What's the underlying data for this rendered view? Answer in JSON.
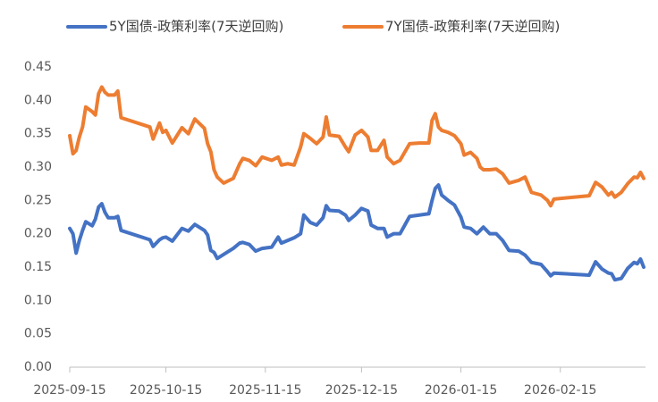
{
  "chart_data": {
    "type": "line",
    "x": [
      "2025-09-15",
      "2025-09-16",
      "2025-09-17",
      "2025-09-18",
      "2025-09-19",
      "2025-09-20",
      "2025-09-22",
      "2025-09-23",
      "2025-09-24",
      "2025-09-25",
      "2025-09-26",
      "2025-09-27",
      "2025-09-29",
      "2025-09-30",
      "2025-10-01",
      "2025-10-10",
      "2025-10-11",
      "2025-10-13",
      "2025-10-14",
      "2025-10-15",
      "2025-10-17",
      "2025-10-20",
      "2025-10-22",
      "2025-10-24",
      "2025-10-27",
      "2025-10-28",
      "2025-10-29",
      "2025-10-30",
      "2025-10-31",
      "2025-11-02",
      "2025-11-05",
      "2025-11-07",
      "2025-11-08",
      "2025-11-10",
      "2025-11-12",
      "2025-11-14",
      "2025-11-17",
      "2025-11-19",
      "2025-11-20",
      "2025-11-22",
      "2025-11-24",
      "2025-11-26",
      "2025-11-27",
      "2025-11-29",
      "2025-12-01",
      "2025-12-03",
      "2025-12-04",
      "2025-12-05",
      "2025-12-08",
      "2025-12-10",
      "2025-12-11",
      "2025-12-13",
      "2025-12-15",
      "2025-12-17",
      "2025-12-18",
      "2025-12-20",
      "2025-12-22",
      "2025-12-23",
      "2025-12-25",
      "2025-12-27",
      "2025-12-30",
      "2026-01-02",
      "2026-01-05",
      "2026-01-06",
      "2026-01-07",
      "2026-01-08",
      "2026-01-09",
      "2026-01-11",
      "2026-01-13",
      "2026-01-15",
      "2026-01-16",
      "2026-01-18",
      "2026-01-20",
      "2026-01-21",
      "2026-01-22",
      "2026-01-24",
      "2026-01-26",
      "2026-01-28",
      "2026-01-30",
      "2026-02-02",
      "2026-02-04",
      "2026-02-06",
      "2026-02-09",
      "2026-02-11",
      "2026-02-12",
      "2026-02-13",
      "2026-02-24",
      "2026-02-26",
      "2026-02-28",
      "2026-03-02",
      "2026-03-03",
      "2026-03-04",
      "2026-03-06",
      "2026-03-08",
      "2026-03-10",
      "2026-03-11",
      "2026-03-12",
      "2026-03-13"
    ],
    "series": [
      {
        "name": "5Y国债-政策利率(7天逆回购)",
        "color": "#4472c4",
        "values": [
          0.208,
          0.2,
          0.171,
          0.19,
          0.205,
          0.218,
          0.212,
          0.222,
          0.24,
          0.245,
          0.232,
          0.224,
          0.224,
          0.226,
          0.205,
          0.191,
          0.181,
          0.191,
          0.194,
          0.195,
          0.189,
          0.208,
          0.204,
          0.214,
          0.205,
          0.198,
          0.175,
          0.172,
          0.163,
          0.169,
          0.178,
          0.186,
          0.187,
          0.184,
          0.174,
          0.178,
          0.18,
          0.195,
          0.186,
          0.19,
          0.194,
          0.2,
          0.228,
          0.217,
          0.213,
          0.224,
          0.242,
          0.235,
          0.234,
          0.228,
          0.22,
          0.228,
          0.238,
          0.234,
          0.213,
          0.208,
          0.208,
          0.195,
          0.2,
          0.2,
          0.226,
          0.228,
          0.23,
          0.25,
          0.268,
          0.273,
          0.258,
          0.25,
          0.243,
          0.225,
          0.21,
          0.208,
          0.2,
          0.205,
          0.21,
          0.2,
          0.2,
          0.19,
          0.175,
          0.174,
          0.168,
          0.157,
          0.154,
          0.143,
          0.137,
          0.141,
          0.138,
          0.158,
          0.147,
          0.141,
          0.14,
          0.131,
          0.133,
          0.148,
          0.157,
          0.155,
          0.162,
          0.15
        ]
      },
      {
        "name": "7Y国债-政策利率(7天逆回购)",
        "color": "#ed7d31",
        "values": [
          0.347,
          0.32,
          0.325,
          0.345,
          0.36,
          0.39,
          0.383,
          0.378,
          0.41,
          0.42,
          0.412,
          0.408,
          0.408,
          0.414,
          0.374,
          0.36,
          0.342,
          0.366,
          0.352,
          0.355,
          0.336,
          0.359,
          0.35,
          0.372,
          0.358,
          0.335,
          0.323,
          0.296,
          0.285,
          0.276,
          0.283,
          0.305,
          0.313,
          0.31,
          0.302,
          0.315,
          0.31,
          0.315,
          0.303,
          0.305,
          0.303,
          0.33,
          0.35,
          0.343,
          0.335,
          0.345,
          0.375,
          0.348,
          0.346,
          0.33,
          0.323,
          0.348,
          0.355,
          0.345,
          0.325,
          0.325,
          0.34,
          0.315,
          0.305,
          0.31,
          0.335,
          0.336,
          0.336,
          0.37,
          0.38,
          0.36,
          0.355,
          0.352,
          0.347,
          0.335,
          0.318,
          0.322,
          0.313,
          0.3,
          0.296,
          0.296,
          0.297,
          0.29,
          0.276,
          0.28,
          0.285,
          0.262,
          0.258,
          0.25,
          0.242,
          0.252,
          0.257,
          0.277,
          0.27,
          0.258,
          0.262,
          0.255,
          0.262,
          0.275,
          0.285,
          0.284,
          0.292,
          0.283
        ]
      }
    ],
    "xlim": [
      "2025-09-15",
      "2026-03-13"
    ],
    "xticks": [
      "2025-09-15",
      "2025-10-15",
      "2025-11-15",
      "2025-12-15",
      "2026-01-15",
      "2026-02-15"
    ],
    "ylim": [
      0,
      0.45
    ],
    "yticks": [
      {
        "value": 0,
        "label": "0.00"
      },
      {
        "value": 0.05,
        "label": "0.05"
      },
      {
        "value": 0.1,
        "label": "0.10"
      },
      {
        "value": 0.15,
        "label": "0.15"
      },
      {
        "value": 0.2,
        "label": "0.20"
      },
      {
        "value": 0.25,
        "label": "0.25"
      },
      {
        "value": 0.3,
        "label": "0.30"
      },
      {
        "value": 0.35,
        "label": "0.35"
      },
      {
        "value": 0.4,
        "label": "0.40"
      },
      {
        "value": 0.45,
        "label": "0.45"
      }
    ],
    "grid": false,
    "legend": "top"
  }
}
